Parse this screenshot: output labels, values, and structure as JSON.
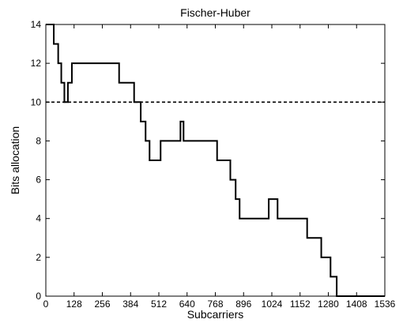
{
  "chart_data": {
    "type": "line",
    "title": "Fischer-Huber",
    "xlabel": "Subcarriers",
    "ylabel": "Bits allocation",
    "xlim": [
      0,
      1536
    ],
    "ylim": [
      0,
      14
    ],
    "xticks": [
      0,
      128,
      256,
      384,
      512,
      640,
      768,
      896,
      1024,
      1152,
      1280,
      1408,
      1536
    ],
    "yticks": [
      0,
      2,
      4,
      6,
      8,
      10,
      12,
      14
    ],
    "grid": false,
    "legend": "none",
    "series": [
      {
        "style": "solid",
        "color": "#000000",
        "x": [
          0,
          36,
          36,
          56,
          56,
          70,
          70,
          84,
          84,
          100,
          100,
          118,
          118,
          332,
          332,
          400,
          400,
          430,
          430,
          452,
          452,
          470,
          470,
          520,
          520,
          610,
          610,
          624,
          624,
          776,
          776,
          836,
          836,
          860,
          860,
          878,
          878,
          1010,
          1010,
          1050,
          1050,
          1184,
          1184,
          1248,
          1248,
          1290,
          1290,
          1318,
          1318,
          1536
        ],
        "y": [
          14,
          14,
          13,
          13,
          12,
          12,
          11,
          11,
          10,
          10,
          11,
          11,
          12,
          12,
          11,
          11,
          10,
          10,
          9,
          9,
          8,
          8,
          7,
          7,
          8,
          8,
          9,
          9,
          8,
          8,
          7,
          7,
          6,
          6,
          5,
          5,
          4,
          4,
          5,
          5,
          4,
          4,
          3,
          3,
          2,
          2,
          1,
          1,
          0,
          0
        ]
      },
      {
        "style": "dashed",
        "color": "#000000",
        "x": [
          0,
          1536
        ],
        "y": [
          10,
          10
        ]
      }
    ]
  }
}
